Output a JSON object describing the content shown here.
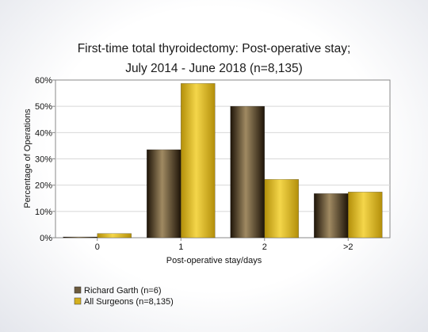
{
  "chart_data": {
    "type": "bar",
    "title": [
      "First-time total thyroidectomy: Post-operative stay;",
      "July 2014 - June 2018 (n=8,135)"
    ],
    "xlabel": "Post-operative stay/days",
    "ylabel": "Percentage of Operations",
    "categories": [
      "0",
      "1",
      "2",
      ">2"
    ],
    "ylim": [
      0,
      60
    ],
    "yticks": [
      "0%",
      "10%",
      "20%",
      "30%",
      "40%",
      "50%",
      "60%"
    ],
    "grid": true,
    "legend_position": "bottom-left",
    "series": [
      {
        "name": "Richard Garth (n=6)",
        "values": [
          0.3,
          33.5,
          50.0,
          16.8
        ],
        "color": "#6b5a3e"
      },
      {
        "name": "All Surgeons (n=8,135)",
        "values": [
          1.6,
          58.7,
          22.2,
          17.4
        ],
        "color": "#d4b01e"
      }
    ]
  }
}
